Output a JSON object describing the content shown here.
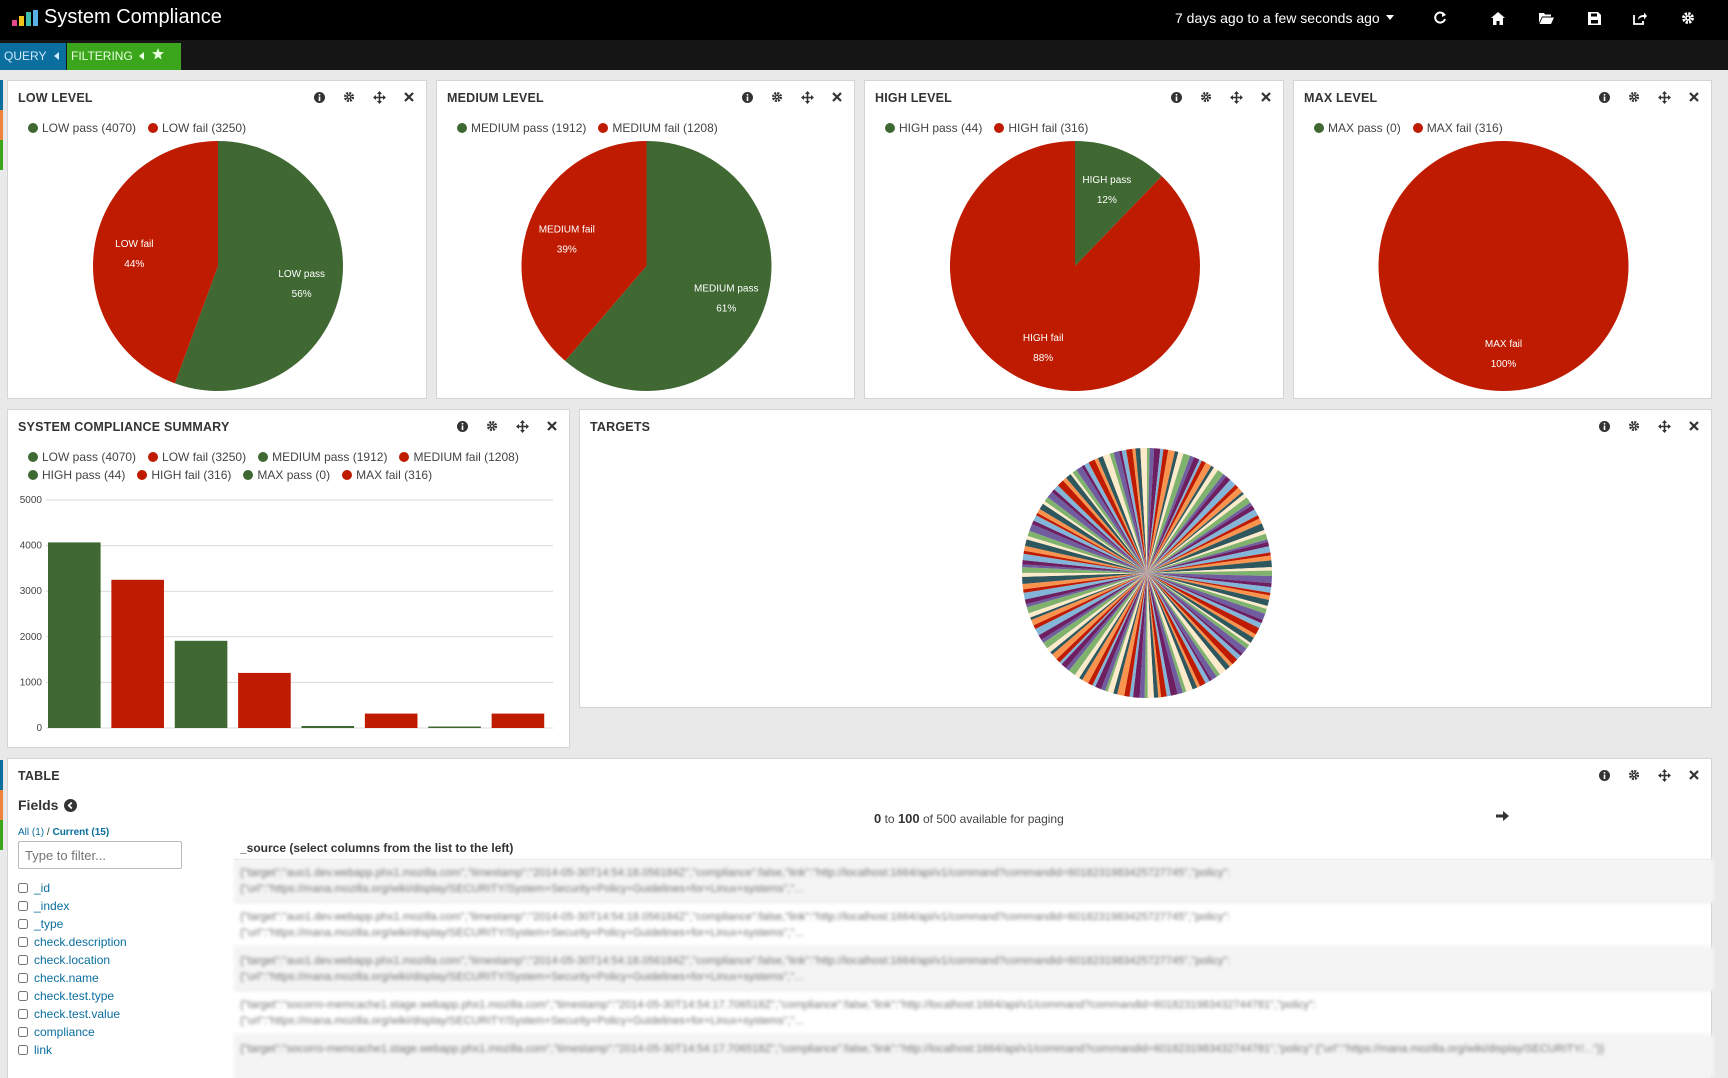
{
  "app": {
    "title": "System Compliance",
    "timerange": "7 days ago to a few seconds ago"
  },
  "querybar": {
    "query_label": "QUERY",
    "filtering_label": "FILTERING"
  },
  "panels": {
    "low": {
      "title": "LOW LEVEL",
      "legend": [
        {
          "label": "LOW pass (4070)",
          "color": "#3f6832"
        },
        {
          "label": "LOW fail (3250)",
          "color": "#bf1b00"
        }
      ]
    },
    "medium": {
      "title": "MEDIUM LEVEL",
      "legend": [
        {
          "label": "MEDIUM pass (1912)",
          "color": "#3f6832"
        },
        {
          "label": "MEDIUM fail (1208)",
          "color": "#bf1b00"
        }
      ]
    },
    "high": {
      "title": "HIGH LEVEL",
      "legend": [
        {
          "label": "HIGH pass (44)",
          "color": "#3f6832"
        },
        {
          "label": "HIGH fail (316)",
          "color": "#bf1b00"
        }
      ]
    },
    "max": {
      "title": "MAX LEVEL",
      "legend": [
        {
          "label": "MAX pass (0)",
          "color": "#3f6832"
        },
        {
          "label": "MAX fail (316)",
          "color": "#bf1b00"
        }
      ]
    },
    "summary": {
      "title": "SYSTEM COMPLIANCE SUMMARY",
      "legend": [
        {
          "label": "LOW pass (4070)",
          "color": "#3f6832"
        },
        {
          "label": "LOW fail (3250)",
          "color": "#bf1b00"
        },
        {
          "label": "MEDIUM pass (1912)",
          "color": "#3f6832"
        },
        {
          "label": "MEDIUM fail (1208)",
          "color": "#bf1b00"
        },
        {
          "label": "HIGH pass (44)",
          "color": "#3f6832"
        },
        {
          "label": "HIGH fail (316)",
          "color": "#bf1b00"
        },
        {
          "label": "MAX pass (0)",
          "color": "#3f6832"
        },
        {
          "label": "MAX fail (316)",
          "color": "#bf1b00"
        }
      ]
    },
    "targets": {
      "title": "TARGETS"
    },
    "table": {
      "title": "TABLE",
      "fields_title": "Fields",
      "fields_all": "All (1)",
      "fields_sep": " / ",
      "fields_current": "Current (15)",
      "filter_placeholder": "Type to filter...",
      "fields": [
        "_id",
        "_index",
        "_type",
        "check.description",
        "check.location",
        "check.name",
        "check.test.type",
        "check.test.value",
        "compliance",
        "link"
      ],
      "paging_from": "0",
      "paging_to_word": "to",
      "paging_to": "100",
      "paging_suffix": "of 500 available for paging",
      "source_header": "_source (select columns from the list to the left)",
      "rows": [
        "{\"target\":\"auo1.dev.webapp.phx1.mozilla.com\",\"timestamp\":\"2014-05-30T14:54:18.056184Z\",\"compliance\":false,\"link\":\"http://localhost:1664/api/v1/command?commandid=6018231983425727745\",\"policy\":{\"url\":\"https://mana.mozilla.org/wiki/display/SECURITY/System+Security+Policy+Guidelines+for+Linux+systems\",\"...",
        "{\"target\":\"auo1.dev.webapp.phx1.mozilla.com\",\"timestamp\":\"2014-05-30T14:54:18.056184Z\",\"compliance\":false,\"link\":\"http://localhost:1664/api/v1/command?commandid=6018231983425727745\",\"policy\":{\"url\":\"https://mana.mozilla.org/wiki/display/SECURITY/System+Security+Policy+Guidelines+for+Linux+systems\",\"...",
        "{\"target\":\"auo1.dev.webapp.phx1.mozilla.com\",\"timestamp\":\"2014-05-30T14:54:18.056184Z\",\"compliance\":false,\"link\":\"http://localhost:1664/api/v1/command?commandid=6018231983425727745\",\"policy\":{\"url\":\"https://mana.mozilla.org/wiki/display/SECURITY/System+Security+Policy+Guidelines+for+Linux+systems\",\"...",
        "{\"target\":\"socorro-memcache1.stage.webapp.phx1.mozilla.com\",\"timestamp\":\"2014-05-30T14:54:17.706518Z\",\"compliance\":false,\"link\":\"http://localhost:1664/api/v1/command?commandid=6018231983432744781\",\"policy\":{\"url\":\"https://mana.mozilla.org/wiki/display/SECURITY/System+Security+Policy+Guidelines+for+Linux+systems\",\"...",
        "{\"target\":\"socorro-memcache1.stage.webapp.phx1.mozilla.com\",\"timestamp\":\"2014-05-30T14:54:17.706518Z\",\"compliance\":false,\"link\":\"http://localhost:1664/api/v1/command?commandid=6018231983432744781\",\"policy\":{\"url\":\"https://mana.mozilla.org/wiki/display/SECURITY/...\"}}"
      ]
    }
  },
  "colors": {
    "pass": "#3f6832",
    "fail": "#bf1b00",
    "query_tab": "#0a6e9e",
    "filter_tab": "#3ba51b"
  },
  "chart_data": [
    {
      "type": "pie",
      "title": "LOW LEVEL",
      "slices": [
        {
          "label": "LOW pass",
          "value": 4070,
          "pct": "56%",
          "color": "#3f6832"
        },
        {
          "label": "LOW fail",
          "value": 3250,
          "pct": "44%",
          "color": "#bf1b00"
        }
      ]
    },
    {
      "type": "pie",
      "title": "MEDIUM LEVEL",
      "slices": [
        {
          "label": "MEDIUM pass",
          "value": 1912,
          "pct": "61%",
          "color": "#3f6832"
        },
        {
          "label": "MEDIUM fail",
          "value": 1208,
          "pct": "39%",
          "color": "#bf1b00"
        }
      ]
    },
    {
      "type": "pie",
      "title": "HIGH LEVEL",
      "slices": [
        {
          "label": "HIGH pass",
          "value": 44,
          "pct": "12%",
          "color": "#3f6832"
        },
        {
          "label": "HIGH fail",
          "value": 316,
          "pct": "88%",
          "color": "#bf1b00"
        }
      ]
    },
    {
      "type": "pie",
      "title": "MAX LEVEL",
      "slices": [
        {
          "label": "MAX pass",
          "value": 0,
          "pct": "0%",
          "color": "#3f6832"
        },
        {
          "label": "MAX fail",
          "value": 316,
          "pct": "100%",
          "color": "#bf1b00"
        }
      ]
    },
    {
      "type": "bar",
      "title": "SYSTEM COMPLIANCE SUMMARY",
      "categories": [
        "LOW pass",
        "LOW fail",
        "MEDIUM pass",
        "MEDIUM fail",
        "HIGH pass",
        "HIGH fail",
        "MAX pass",
        "MAX fail"
      ],
      "values": [
        4070,
        3250,
        1912,
        1208,
        44,
        316,
        0,
        316
      ],
      "colors": [
        "#3f6832",
        "#bf1b00",
        "#3f6832",
        "#bf1b00",
        "#3f6832",
        "#bf1b00",
        "#3f6832",
        "#bf1b00"
      ],
      "ylim": [
        0,
        5000
      ],
      "yticks": [
        0,
        1000,
        2000,
        3000,
        4000,
        5000
      ]
    },
    {
      "type": "pie",
      "title": "TARGETS",
      "slice_count": 160,
      "palette": [
        "#7eb26d",
        "#eab839",
        "#6ed0e0",
        "#ef843c",
        "#e24d42",
        "#1f78c1",
        "#ba43a9",
        "#705da0",
        "#508642",
        "#cca300",
        "#447ebc",
        "#c15c17",
        "#890f02",
        "#0a437c",
        "#6d1f62",
        "#584477",
        "#b7dbab",
        "#f4d598",
        "#70dbed",
        "#f9ba8f",
        "#f29191",
        "#82b5d8",
        "#e5a8e2",
        "#aea2e0",
        "#629e51",
        "#e5ac0e",
        "#64b0c8",
        "#e0752d",
        "#bf1b00",
        "#0a50a1",
        "#962d82",
        "#614d93",
        "#9ac48a",
        "#f2c96d",
        "#65c5db",
        "#f9934e",
        "#ea6460",
        "#5195ce",
        "#d683ce",
        "#806eb7",
        "#3f6833",
        "#967302",
        "#2f575e",
        "#99440a",
        "#58140c",
        "#052b51",
        "#511749",
        "#3f2b5b",
        "#e0f9d7",
        "#fceaca",
        "#cffaff",
        "#f9e2d2",
        "#fce2de",
        "#badff4",
        "#f9d9f9",
        "#dedaf7"
      ]
    }
  ]
}
